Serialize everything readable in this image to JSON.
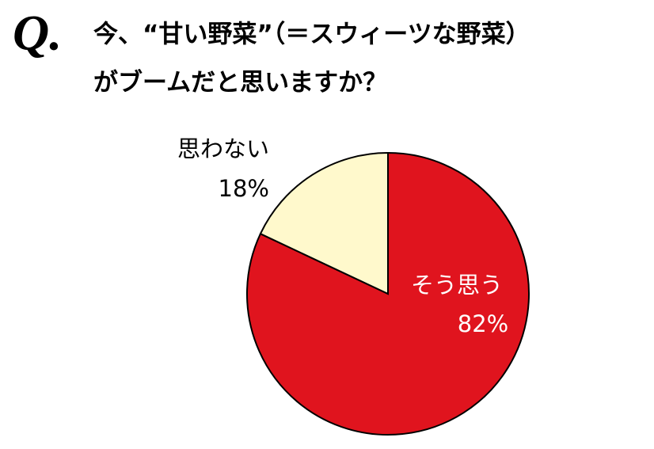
{
  "chart_data": {
    "type": "pie",
    "logo": "Q.",
    "title_lines": [
      "今、“甘い野菜”（＝スウィーツな野菜）",
      "がブームだと思いますか？"
    ],
    "categories": [
      "そう思う",
      "思わない"
    ],
    "values": [
      82,
      18
    ],
    "value_labels": [
      "82%",
      "18%"
    ],
    "colors": [
      "#e0141e",
      "#fff9cc"
    ],
    "label_colors": [
      "#ffffff",
      "#000000"
    ]
  }
}
